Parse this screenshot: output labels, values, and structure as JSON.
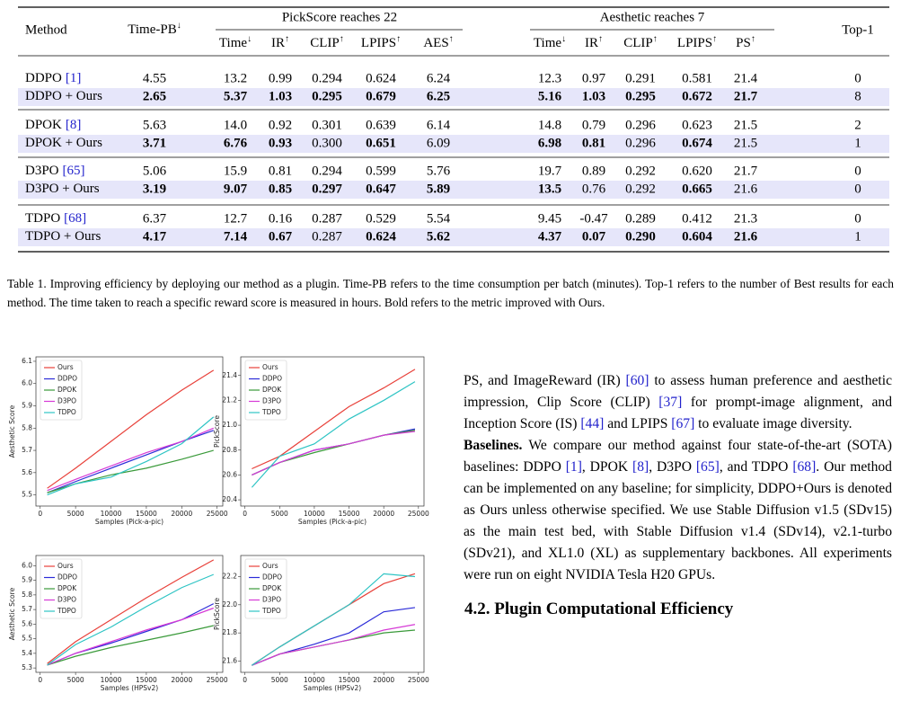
{
  "table": {
    "header": {
      "method": "Method",
      "time_pb": {
        "text": "Time-PB",
        "sup": "↓"
      },
      "groups": [
        "PickScore reaches 22",
        "Aesthetic reaches 7"
      ],
      "top1": "Top-1",
      "sub": [
        {
          "text": "Time",
          "sup": "↓"
        },
        {
          "text": "IR",
          "sup": "↑"
        },
        {
          "text": "CLIP",
          "sup": "↑"
        },
        {
          "text": "LPIPS",
          "sup": "↑"
        },
        {
          "text": "AES",
          "sup": "↑"
        },
        {
          "text": "Time",
          "sup": "↓"
        },
        {
          "text": "IR",
          "sup": "↑"
        },
        {
          "text": "CLIP",
          "sup": "↑"
        },
        {
          "text": "LPIPS",
          "sup": "↑"
        },
        {
          "text": "PS",
          "sup": "↑"
        }
      ]
    },
    "rows": [
      {
        "method": "DDPO",
        "cite": "[1]",
        "cells": [
          "4.55",
          "13.2",
          "0.99",
          "0.294",
          "0.624",
          "6.24",
          "12.3",
          "0.97",
          "0.291",
          "0.581",
          "21.4",
          "0"
        ]
      },
      {
        "method": "DDPO + Ours",
        "cells": [
          "2.65",
          "5.37",
          "1.03",
          "0.295",
          "0.679",
          "6.25",
          "5.16",
          "1.03",
          "0.295",
          "0.672",
          "21.7",
          "8"
        ],
        "bold": [
          0,
          1,
          2,
          3,
          4,
          5,
          6,
          7,
          8,
          9,
          10
        ]
      },
      {
        "method": "DPOK",
        "cite": "[8]",
        "cells": [
          "5.63",
          "14.0",
          "0.92",
          "0.301",
          "0.639",
          "6.14",
          "14.8",
          "0.79",
          "0.296",
          "0.623",
          "21.5",
          "2"
        ]
      },
      {
        "method": "DPOK + Ours",
        "cells": [
          "3.71",
          "6.76",
          "0.93",
          "0.300",
          "0.651",
          "6.09",
          "6.98",
          "0.81",
          "0.296",
          "0.674",
          "21.5",
          "1"
        ],
        "bold": [
          0,
          1,
          2,
          4,
          6,
          7,
          9
        ]
      },
      {
        "method": "D3PO",
        "cite": "[65]",
        "cells": [
          "5.06",
          "15.9",
          "0.81",
          "0.294",
          "0.599",
          "5.76",
          "19.7",
          "0.89",
          "0.292",
          "0.620",
          "21.7",
          "0"
        ]
      },
      {
        "method": "D3PO + Ours",
        "cells": [
          "3.19",
          "9.07",
          "0.85",
          "0.297",
          "0.647",
          "5.89",
          "13.5",
          "0.76",
          "0.292",
          "0.665",
          "21.6",
          "0"
        ],
        "bold": [
          0,
          1,
          2,
          3,
          4,
          5,
          6,
          9
        ]
      },
      {
        "method": "TDPO",
        "cite": "[68]",
        "cells": [
          "6.37",
          "12.7",
          "0.16",
          "0.287",
          "0.529",
          "5.54",
          "9.45",
          "-0.47",
          "0.289",
          "0.412",
          "21.3",
          "0"
        ]
      },
      {
        "method": "TDPO + Ours",
        "cells": [
          "4.17",
          "7.14",
          "0.67",
          "0.287",
          "0.624",
          "5.62",
          "4.37",
          "0.07",
          "0.290",
          "0.604",
          "21.6",
          "1"
        ],
        "bold": [
          0,
          1,
          2,
          4,
          5,
          6,
          7,
          8,
          9,
          10
        ]
      }
    ]
  },
  "caption": "Table 1. Improving efficiency by deploying our method as a plugin. Time-PB refers to the time consumption per batch (minutes). Top-1 refers to the number of Best results for each method. The time taken to reach a specific reward score is measured in hours. Bold refers to the metric improved with Ours.",
  "chart_data": [
    {
      "type": "line",
      "xlabel": "Samples (Pick-a-pic)",
      "ylabel": "Aesthetic Score",
      "legend": "upper left",
      "x": [
        1000,
        5000,
        10000,
        15000,
        20000,
        24500
      ],
      "xlim": [
        -600,
        25800
      ],
      "xticks": [
        0,
        5000,
        10000,
        15000,
        20000,
        25000
      ],
      "ylim": [
        5.45,
        6.12
      ],
      "yticks": [
        5.5,
        5.6,
        5.7,
        5.8,
        5.9,
        {
          "value": 6,
          "label": "6.0"
        },
        6.1
      ],
      "series": [
        {
          "name": "Ours",
          "color": "#e8413a",
          "values": [
            5.53,
            5.62,
            5.74,
            5.86,
            5.97,
            6.06
          ]
        },
        {
          "name": "DDPO",
          "color": "#2b2bd8",
          "values": [
            5.51,
            5.56,
            5.62,
            5.68,
            5.74,
            5.79
          ]
        },
        {
          "name": "DPOK",
          "color": "#3a9a3a",
          "values": [
            5.51,
            5.55,
            5.59,
            5.62,
            5.66,
            5.7
          ]
        },
        {
          "name": "D3PO",
          "color": "#d63ad6",
          "values": [
            5.52,
            5.57,
            5.63,
            5.69,
            5.74,
            5.8
          ]
        },
        {
          "name": "TDPO",
          "color": "#2ec4c4",
          "values": [
            5.5,
            5.55,
            5.58,
            5.65,
            5.73,
            5.85
          ]
        }
      ]
    },
    {
      "type": "line",
      "xlabel": "Samples (Pick-a-pic)",
      "ylabel": "PickScore",
      "legend": "upper left",
      "x": [
        1000,
        5000,
        10000,
        15000,
        20000,
        24500
      ],
      "xlim": [
        -600,
        25800
      ],
      "xticks": [
        0,
        5000,
        10000,
        15000,
        20000,
        25000
      ],
      "ylim": [
        20.35,
        21.55
      ],
      "yticks": [
        20.4,
        20.6,
        20.8,
        {
          "value": 21,
          "label": "21.0"
        },
        21.2,
        21.4
      ],
      "series": [
        {
          "name": "Ours",
          "color": "#e8413a",
          "values": [
            20.65,
            20.75,
            20.95,
            21.15,
            21.3,
            21.45
          ]
        },
        {
          "name": "DDPO",
          "color": "#2b2bd8",
          "values": [
            20.6,
            20.7,
            20.8,
            20.85,
            20.92,
            20.97
          ]
        },
        {
          "name": "DPOK",
          "color": "#3a9a3a",
          "values": [
            20.6,
            20.7,
            20.78,
            20.85,
            20.92,
            20.96
          ]
        },
        {
          "name": "D3PO",
          "color": "#d63ad6",
          "values": [
            20.6,
            20.7,
            20.8,
            20.85,
            20.92,
            20.95
          ]
        },
        {
          "name": "TDPO",
          "color": "#2ec4c4",
          "values": [
            20.5,
            20.75,
            20.85,
            21.05,
            21.2,
            21.35
          ]
        }
      ]
    },
    {
      "type": "line",
      "xlabel": "Samples (HPSv2)",
      "ylabel": "Aesthetic Score",
      "legend": "upper left",
      "x": [
        1000,
        5000,
        10000,
        15000,
        20000,
        24500
      ],
      "xlim": [
        -600,
        25800
      ],
      "xticks": [
        0,
        5000,
        10000,
        15000,
        20000,
        25000
      ],
      "ylim": [
        5.27,
        6.07
      ],
      "yticks": [
        5.3,
        5.4,
        5.5,
        5.6,
        5.7,
        5.8,
        5.9,
        {
          "value": 6,
          "label": "6.0"
        }
      ],
      "series": [
        {
          "name": "Ours",
          "color": "#e8413a",
          "values": [
            5.33,
            5.48,
            5.63,
            5.78,
            5.92,
            6.04
          ]
        },
        {
          "name": "DDPO",
          "color": "#2b2bd8",
          "values": [
            5.32,
            5.4,
            5.47,
            5.55,
            5.63,
            5.74
          ]
        },
        {
          "name": "DPOK",
          "color": "#3a9a3a",
          "values": [
            5.32,
            5.38,
            5.44,
            5.49,
            5.54,
            5.59
          ]
        },
        {
          "name": "D3PO",
          "color": "#d63ad6",
          "values": [
            5.32,
            5.4,
            5.48,
            5.56,
            5.63,
            5.71
          ]
        },
        {
          "name": "TDPO",
          "color": "#2ec4c4",
          "values": [
            5.32,
            5.46,
            5.58,
            5.72,
            5.85,
            5.94
          ]
        }
      ]
    },
    {
      "type": "line",
      "xlabel": "Samples (HPSv2)",
      "ylabel": "PickScore",
      "legend": "upper left",
      "x": [
        1000,
        5000,
        10000,
        15000,
        20000,
        24500
      ],
      "xlim": [
        -600,
        25800
      ],
      "xticks": [
        0,
        5000,
        10000,
        15000,
        20000,
        25000
      ],
      "ylim": [
        21.52,
        22.35
      ],
      "yticks": [
        21.6,
        21.8,
        {
          "value": 22,
          "label": "22.0"
        },
        22.2
      ],
      "series": [
        {
          "name": "Ours",
          "color": "#e8413a",
          "values": [
            21.57,
            21.7,
            21.85,
            22.0,
            22.15,
            22.22
          ]
        },
        {
          "name": "DDPO",
          "color": "#2b2bd8",
          "values": [
            21.57,
            21.65,
            21.72,
            21.8,
            21.95,
            21.98
          ]
        },
        {
          "name": "DPOK",
          "color": "#3a9a3a",
          "values": [
            21.57,
            21.65,
            21.7,
            21.75,
            21.8,
            21.82
          ]
        },
        {
          "name": "D3PO",
          "color": "#d63ad6",
          "values": [
            21.57,
            21.65,
            21.7,
            21.75,
            21.82,
            21.86
          ]
        },
        {
          "name": "TDPO",
          "color": "#2ec4c4",
          "values": [
            21.57,
            21.7,
            21.85,
            22.0,
            22.22,
            22.2
          ]
        }
      ]
    }
  ],
  "body": {
    "paragraphs": [
      {
        "text": "PS, and ImageReward (IR) [60] to assess human preference and aesthetic impression, Clip Score (CLIP) [37] for prompt-image alignment, and Inception Score (IS) [44] and LPIPS [67] to evaluate image diversity."
      },
      {
        "label": "Baselines.",
        "text": "We compare our method against four state-of-the-art (SOTA) baselines: DDPO [1], DPOK [8], D3PO [65], and TDPO [68]. Our method can be implemented on any baseline; for simplicity, DDPO+Ours is denoted as Ours unless otherwise specified. We use Stable Diffusion v1.5 (SDv15) as the main test bed, with Stable Diffusion v1.4 (SDv14), v2.1-turbo (SDv21), and XL1.0 (XL) as supplementary backbones. All experiments were run on eight NVIDIA Tesla H20 GPUs."
      }
    ],
    "heading": "4.2. Plugin Computational Efficiency"
  }
}
